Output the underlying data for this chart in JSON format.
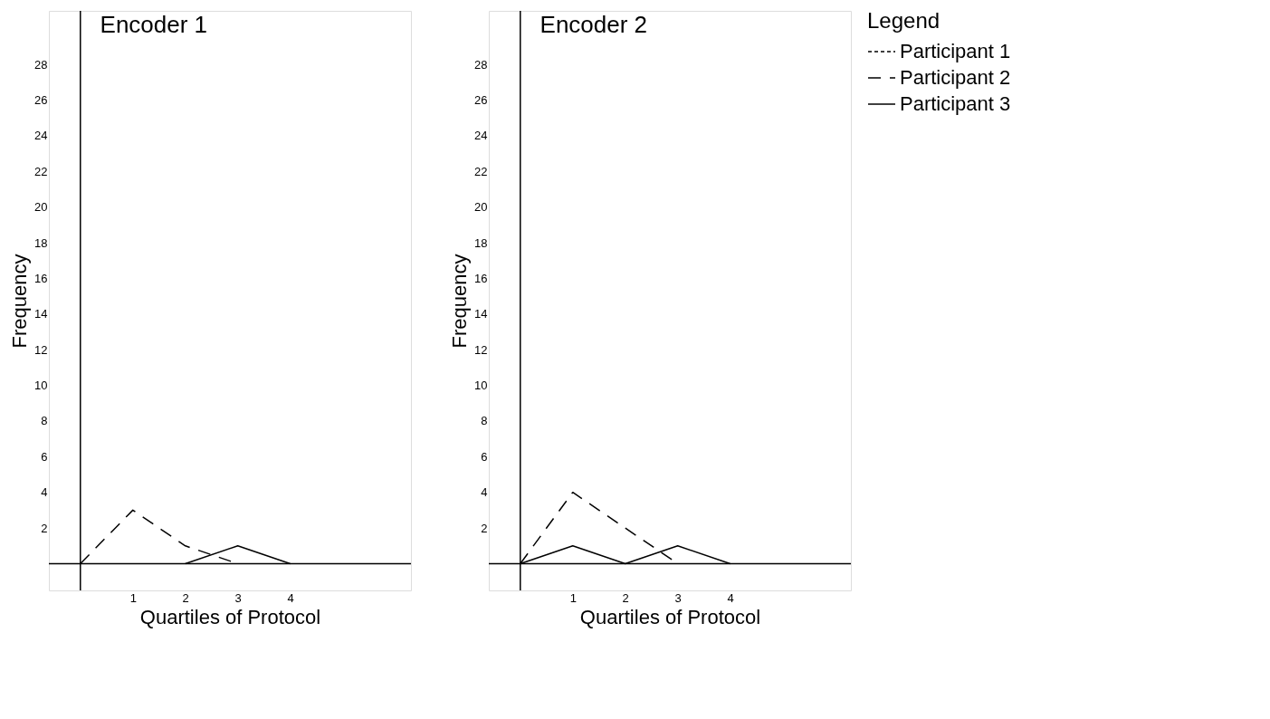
{
  "chart_data": [
    {
      "type": "line",
      "title": "Encoder 1",
      "xlabel": "Quartiles of Protocol",
      "ylabel": "Frequency",
      "xlim": [
        -0.6,
        6.3
      ],
      "ylim": [
        -1.5,
        31
      ],
      "xticks": [
        1,
        2,
        3,
        4
      ],
      "yticks": [
        2,
        4,
        6,
        8,
        10,
        12,
        14,
        16,
        18,
        20,
        22,
        24,
        26,
        28
      ],
      "grid": false,
      "legend": false,
      "series": [
        {
          "color": "#000000",
          "line_style": "dashed",
          "x": [
            0,
            1,
            2,
            3
          ],
          "values": [
            0,
            3,
            1,
            0
          ]
        },
        {
          "color": "#000000",
          "line_style": "solid",
          "x": [
            2,
            3,
            4
          ],
          "values": [
            0,
            1,
            0
          ]
        }
      ]
    },
    {
      "type": "line",
      "title": "Encoder 2",
      "xlabel": "Quartiles of Protocol",
      "ylabel": "Frequency",
      "xlim": [
        -0.6,
        6.3
      ],
      "ylim": [
        -1.5,
        31
      ],
      "xticks": [
        1,
        2,
        3,
        4
      ],
      "yticks": [
        2,
        4,
        6,
        8,
        10,
        12,
        14,
        16,
        18,
        20,
        22,
        24,
        26,
        28
      ],
      "grid": false,
      "legend": "top right",
      "legend_title": "Legend",
      "series": [
        {
          "name": "Participant 1",
          "color": "#000000",
          "line_style": "dotted"
        },
        {
          "name": "Participant 2",
          "color": "#000000",
          "line_style": "dashed",
          "x": [
            0,
            1,
            2,
            3
          ],
          "values": [
            0,
            4,
            2,
            0
          ]
        },
        {
          "name": "Participant 3",
          "color": "#000000",
          "line_style": "solid",
          "x": [
            0,
            1,
            2,
            3,
            4
          ],
          "values": [
            0,
            1,
            0,
            1,
            0
          ]
        }
      ]
    }
  ]
}
